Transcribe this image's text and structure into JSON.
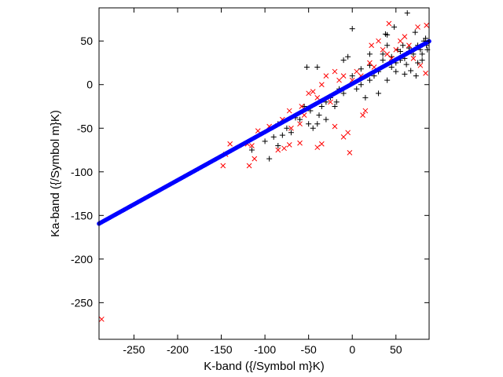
{
  "chart_data": {
    "type": "scatter",
    "title": "",
    "xlabel": "K-band ({/Symbol m}K)",
    "ylabel": "Ka-band ({/Symbol m}K)",
    "xlim": [
      -290,
      88
    ],
    "ylim": [
      -292,
      88
    ],
    "xticks": [
      -250,
      -200,
      -150,
      -100,
      -50,
      0,
      50
    ],
    "yticks": [
      -250,
      -200,
      -150,
      -100,
      -50,
      0,
      50
    ],
    "xtick_labels": [
      "-250",
      "-200",
      "-150",
      "-100",
      "-50",
      "0",
      "50"
    ],
    "ytick_labels": [
      "-250",
      "-200",
      "-150",
      "-100",
      "-50",
      "0",
      "50"
    ],
    "grid": false,
    "legend": "none",
    "series": [
      {
        "marker": "plus",
        "color": "#000000",
        "points": [
          [
            -40,
            20
          ],
          [
            0,
            64
          ],
          [
            63,
            82
          ],
          [
            48,
            66
          ],
          [
            72,
            60
          ],
          [
            40,
            57
          ],
          [
            20,
            35
          ],
          [
            35,
            35
          ],
          [
            55,
            28
          ],
          [
            62,
            23
          ],
          [
            75,
            25
          ],
          [
            80,
            35
          ],
          [
            84,
            53
          ],
          [
            40,
            45
          ],
          [
            -5,
            32
          ],
          [
            -10,
            28
          ],
          [
            -52,
            20
          ],
          [
            -55,
            -25
          ],
          [
            -60,
            -40
          ],
          [
            -50,
            -45
          ],
          [
            -45,
            -50
          ],
          [
            -70,
            -55
          ],
          [
            -80,
            -58
          ],
          [
            -85,
            -45
          ],
          [
            -100,
            -65
          ],
          [
            -40,
            -45
          ],
          [
            -30,
            -40
          ],
          [
            -20,
            -25
          ],
          [
            10,
            0
          ],
          [
            20,
            5
          ],
          [
            25,
            10
          ],
          [
            30,
            15
          ],
          [
            45,
            20
          ],
          [
            50,
            25
          ],
          [
            60,
            30
          ],
          [
            70,
            35
          ],
          [
            78,
            40
          ],
          [
            80,
            28
          ],
          [
            86,
            40
          ],
          [
            67,
            16
          ],
          [
            60,
            12
          ],
          [
            73,
            10
          ],
          [
            -18,
            -20
          ],
          [
            -38,
            -35
          ],
          [
            -30,
            -20
          ],
          [
            -10,
            -10
          ],
          [
            5,
            -5
          ],
          [
            15,
            -15
          ],
          [
            30,
            -10
          ],
          [
            40,
            5
          ],
          [
            50,
            15
          ],
          [
            85,
            45
          ],
          [
            58,
            45
          ],
          [
            65,
            42
          ],
          [
            -65,
            -38
          ],
          [
            -75,
            -50
          ],
          [
            -90,
            -60
          ],
          [
            -115,
            -75
          ],
          [
            -95,
            -85
          ],
          [
            -85,
            -70
          ],
          [
            -48,
            -30
          ],
          [
            -35,
            -25
          ],
          [
            -25,
            -15
          ],
          [
            -15,
            -5
          ],
          [
            0,
            10
          ],
          [
            10,
            18
          ],
          [
            20,
            22
          ],
          [
            35,
            28
          ],
          [
            45,
            32
          ],
          [
            55,
            38
          ],
          [
            65,
            38
          ],
          [
            75,
            45
          ],
          [
            82,
            50
          ],
          [
            38,
            58
          ],
          [
            52,
            40
          ]
        ]
      },
      {
        "marker": "x",
        "color": "#ff0000",
        "points": [
          [
            -287,
            -269
          ],
          [
            42,
            70
          ],
          [
            85,
            68
          ],
          [
            75,
            66
          ],
          [
            -3,
            -78
          ],
          [
            -35,
            -68
          ],
          [
            -72,
            -69
          ],
          [
            -60,
            -67
          ],
          [
            -78,
            -73
          ],
          [
            -112,
            -85
          ],
          [
            -118,
            -93
          ],
          [
            -148,
            -93
          ],
          [
            -115,
            -70
          ],
          [
            -108,
            -53
          ],
          [
            -140,
            -68
          ],
          [
            -145,
            -80
          ],
          [
            -120,
            -68
          ],
          [
            -85,
            -75
          ],
          [
            -40,
            -72
          ],
          [
            -58,
            -25
          ],
          [
            -55,
            -35
          ],
          [
            -10,
            -60
          ],
          [
            -20,
            -48
          ],
          [
            -5,
            -55
          ],
          [
            84,
            13
          ],
          [
            78,
            22
          ],
          [
            70,
            30
          ],
          [
            12,
            -35
          ],
          [
            15,
            -30
          ],
          [
            -95,
            -48
          ],
          [
            -72,
            -30
          ],
          [
            -60,
            -45
          ],
          [
            -45,
            -8
          ],
          [
            -30,
            10
          ],
          [
            -20,
            15
          ],
          [
            -10,
            10
          ],
          [
            22,
            45
          ],
          [
            30,
            50
          ],
          [
            35,
            40
          ],
          [
            55,
            50
          ],
          [
            60,
            55
          ],
          [
            -70,
            -50
          ],
          [
            -25,
            -20
          ],
          [
            -40,
            -15
          ],
          [
            0,
            5
          ],
          [
            10,
            10
          ],
          [
            20,
            25
          ],
          [
            40,
            35
          ],
          [
            50,
            40
          ],
          [
            65,
            45
          ],
          [
            -80,
            -40
          ],
          [
            -50,
            -10
          ],
          [
            -35,
            0
          ],
          [
            -15,
            5
          ],
          [
            5,
            15
          ],
          [
            25,
            20
          ],
          [
            45,
            30
          ]
        ]
      },
      {
        "marker": "dot",
        "color": "#0000ff",
        "line": {
          "x_start": -290,
          "x_end": 88,
          "slope": 0.553,
          "intercept": 1
        },
        "points": []
      }
    ]
  }
}
